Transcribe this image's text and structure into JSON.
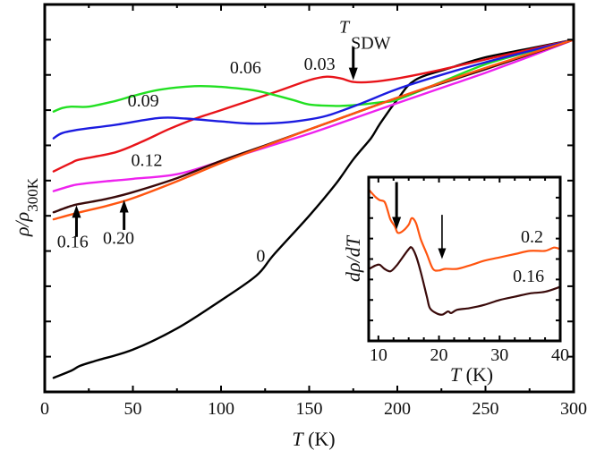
{
  "chart_data": [
    {
      "id": "main",
      "type": "line",
      "title": "",
      "xlabel_italic": "T",
      "xlabel_rest": " (K)",
      "ylabel_main": "ρ/ρ",
      "ylabel_sub": "300K",
      "xlim": [
        0,
        300
      ],
      "ylim": [
        0,
        1.1
      ],
      "xticks": [
        0,
        50,
        100,
        150,
        200,
        250,
        300
      ],
      "xtick_labels": [
        "0",
        "50",
        "100",
        "150",
        "200",
        "250",
        "300"
      ],
      "xminor_step": 25,
      "yticks": [
        0.1,
        0.2,
        0.3,
        0.4,
        0.5,
        0.6,
        0.7,
        0.8,
        0.9,
        1.0
      ],
      "ytick_labels_shown": false,
      "grid": false,
      "series": [
        {
          "name": "0",
          "color": "#000000",
          "x": [
            5,
            15,
            20,
            30,
            50,
            75,
            100,
            120,
            130,
            150,
            165,
            175,
            185,
            190,
            200,
            210,
            230,
            250,
            275,
            300
          ],
          "y": [
            0.04,
            0.06,
            0.074,
            0.09,
            0.12,
            0.18,
            0.26,
            0.33,
            0.39,
            0.5,
            0.59,
            0.66,
            0.72,
            0.76,
            0.83,
            0.885,
            0.92,
            0.95,
            0.975,
            1.0
          ]
        },
        {
          "name": "0.03",
          "color": "#e8141a",
          "x": [
            5,
            15,
            20,
            40,
            55,
            70,
            85,
            100,
            130,
            150,
            160,
            168,
            175,
            185,
            200,
            225,
            250,
            275,
            300
          ],
          "y": [
            0.626,
            0.65,
            0.66,
            0.68,
            0.71,
            0.745,
            0.775,
            0.8,
            0.85,
            0.885,
            0.895,
            0.89,
            0.88,
            0.88,
            0.89,
            0.915,
            0.944,
            0.972,
            1.0
          ]
        },
        {
          "name": "0.06",
          "color": "#22e022",
          "x": [
            5,
            10,
            15,
            25,
            40,
            50,
            65,
            85,
            100,
            120,
            140,
            150,
            165,
            175,
            190,
            200,
            225,
            250,
            275,
            300
          ],
          "y": [
            0.796,
            0.806,
            0.81,
            0.81,
            0.826,
            0.84,
            0.858,
            0.868,
            0.866,
            0.855,
            0.83,
            0.816,
            0.812,
            0.814,
            0.822,
            0.83,
            0.88,
            0.93,
            0.966,
            1.0
          ]
        },
        {
          "name": "0.09",
          "color": "#1c1ce0",
          "x": [
            5,
            10,
            20,
            40,
            65,
            80,
            100,
            115,
            130,
            145,
            160,
            180,
            200,
            225,
            250,
            275,
            300
          ],
          "y": [
            0.72,
            0.735,
            0.745,
            0.758,
            0.778,
            0.776,
            0.768,
            0.762,
            0.763,
            0.77,
            0.784,
            0.82,
            0.86,
            0.9,
            0.936,
            0.968,
            1.0
          ]
        },
        {
          "name": "0.12",
          "color": "#ee22ee",
          "x": [
            5,
            15,
            20,
            35,
            50,
            75,
            100,
            125,
            150,
            175,
            200,
            225,
            250,
            275,
            300
          ],
          "y": [
            0.57,
            0.585,
            0.59,
            0.598,
            0.605,
            0.618,
            0.655,
            0.694,
            0.733,
            0.776,
            0.82,
            0.863,
            0.906,
            0.952,
            1.0
          ]
        },
        {
          "name": "0.16",
          "color": "#3a0a0a",
          "x": [
            5,
            15,
            20,
            35,
            50,
            75,
            100,
            125,
            150,
            175,
            200,
            225,
            250,
            275,
            300
          ],
          "y": [
            0.51,
            0.528,
            0.534,
            0.548,
            0.567,
            0.607,
            0.656,
            0.7,
            0.745,
            0.79,
            0.835,
            0.876,
            0.916,
            0.958,
            1.0
          ]
        },
        {
          "name": "0.20",
          "color": "#ff5510",
          "x": [
            5,
            20,
            35,
            50,
            75,
            100,
            125,
            150,
            175,
            200,
            225,
            250,
            275,
            300
          ],
          "y": [
            0.49,
            0.51,
            0.528,
            0.55,
            0.598,
            0.65,
            0.698,
            0.745,
            0.79,
            0.835,
            0.878,
            0.92,
            0.96,
            1.0
          ]
        }
      ],
      "annotations": [
        {
          "text": "0.06",
          "x": 105,
          "y": 0.905
        },
        {
          "text": "0.03",
          "x": 147,
          "y": 0.915
        },
        {
          "text": "0.09",
          "x": 47,
          "y": 0.81
        },
        {
          "text": "0.12",
          "x": 49,
          "y": 0.642
        },
        {
          "text": "0",
          "x": 120,
          "y": 0.37
        },
        {
          "text": "0.16",
          "x": 7,
          "y": 0.41
        },
        {
          "text": "0.20",
          "x": 33,
          "y": 0.42
        }
      ],
      "tsdw_label": {
        "italic": "T",
        "sub": "SDW",
        "x": 167,
        "y": 1.02
      },
      "arrows": [
        {
          "name": "tsdw-arrow",
          "x": 175,
          "y_from": 0.98,
          "y_to": 0.885,
          "direction": "down"
        },
        {
          "name": "arrow-0.16",
          "x": 18,
          "y_from": 0.44,
          "y_to": 0.53,
          "direction": "up"
        },
        {
          "name": "arrow-0.20",
          "x": 45,
          "y_from": 0.46,
          "y_to": 0.545,
          "direction": "up"
        }
      ]
    },
    {
      "id": "inset",
      "type": "line",
      "xlabel_italic": "T",
      "xlabel_rest": " (K)",
      "ylabel": "dρ/dT",
      "xlim": [
        8.4,
        40
      ],
      "ylim": [
        0,
        1
      ],
      "xticks": [
        10,
        20,
        30,
        40
      ],
      "xtick_labels": [
        "10",
        "20",
        "30",
        "40"
      ],
      "xminor_step": 2.5,
      "yticks": [
        0.125,
        0.25,
        0.375,
        0.5,
        0.625,
        0.75,
        0.875
      ],
      "ytick_labels_shown": false,
      "series": [
        {
          "name": "0.2",
          "color": "#ff5510",
          "x": [
            8.5,
            9.5,
            10.2,
            11,
            11.5,
            12,
            12.7,
            13.2,
            14,
            15,
            15.5,
            16.2,
            17,
            18,
            19,
            20,
            21,
            23,
            25,
            27.5,
            30,
            32.5,
            35,
            37.5,
            39,
            40
          ],
          "y": [
            0.92,
            0.88,
            0.86,
            0.85,
            0.8,
            0.74,
            0.7,
            0.66,
            0.67,
            0.71,
            0.75,
            0.72,
            0.62,
            0.53,
            0.44,
            0.43,
            0.44,
            0.44,
            0.46,
            0.49,
            0.51,
            0.53,
            0.55,
            0.55,
            0.57,
            0.56
          ]
        },
        {
          "name": "0.16",
          "color": "#3a0a0a",
          "x": [
            8.5,
            9.5,
            10.2,
            11,
            12,
            13,
            13.8,
            15,
            15.5,
            16.2,
            17,
            18,
            18.5,
            19.5,
            20.5,
            21.5,
            22,
            23,
            25,
            27.5,
            30,
            32.5,
            35,
            37.5,
            40
          ],
          "y": [
            0.44,
            0.46,
            0.465,
            0.44,
            0.425,
            0.46,
            0.5,
            0.56,
            0.57,
            0.52,
            0.42,
            0.27,
            0.2,
            0.17,
            0.16,
            0.18,
            0.17,
            0.19,
            0.2,
            0.22,
            0.25,
            0.27,
            0.29,
            0.3,
            0.33
          ]
        }
      ],
      "annotations": [
        {
          "text": "0.2",
          "x": 33.5,
          "y": 0.6
        },
        {
          "text": "0.16",
          "x": 32.2,
          "y": 0.36
        }
      ],
      "arrows": [
        {
          "name": "inset-arrow-1",
          "x": 13,
          "y_from": 0.97,
          "y_to": 0.68,
          "direction": "down",
          "thick": true
        },
        {
          "name": "inset-arrow-2",
          "x": 20.5,
          "y_from": 0.77,
          "y_to": 0.5,
          "direction": "down",
          "thick": false
        }
      ]
    }
  ]
}
